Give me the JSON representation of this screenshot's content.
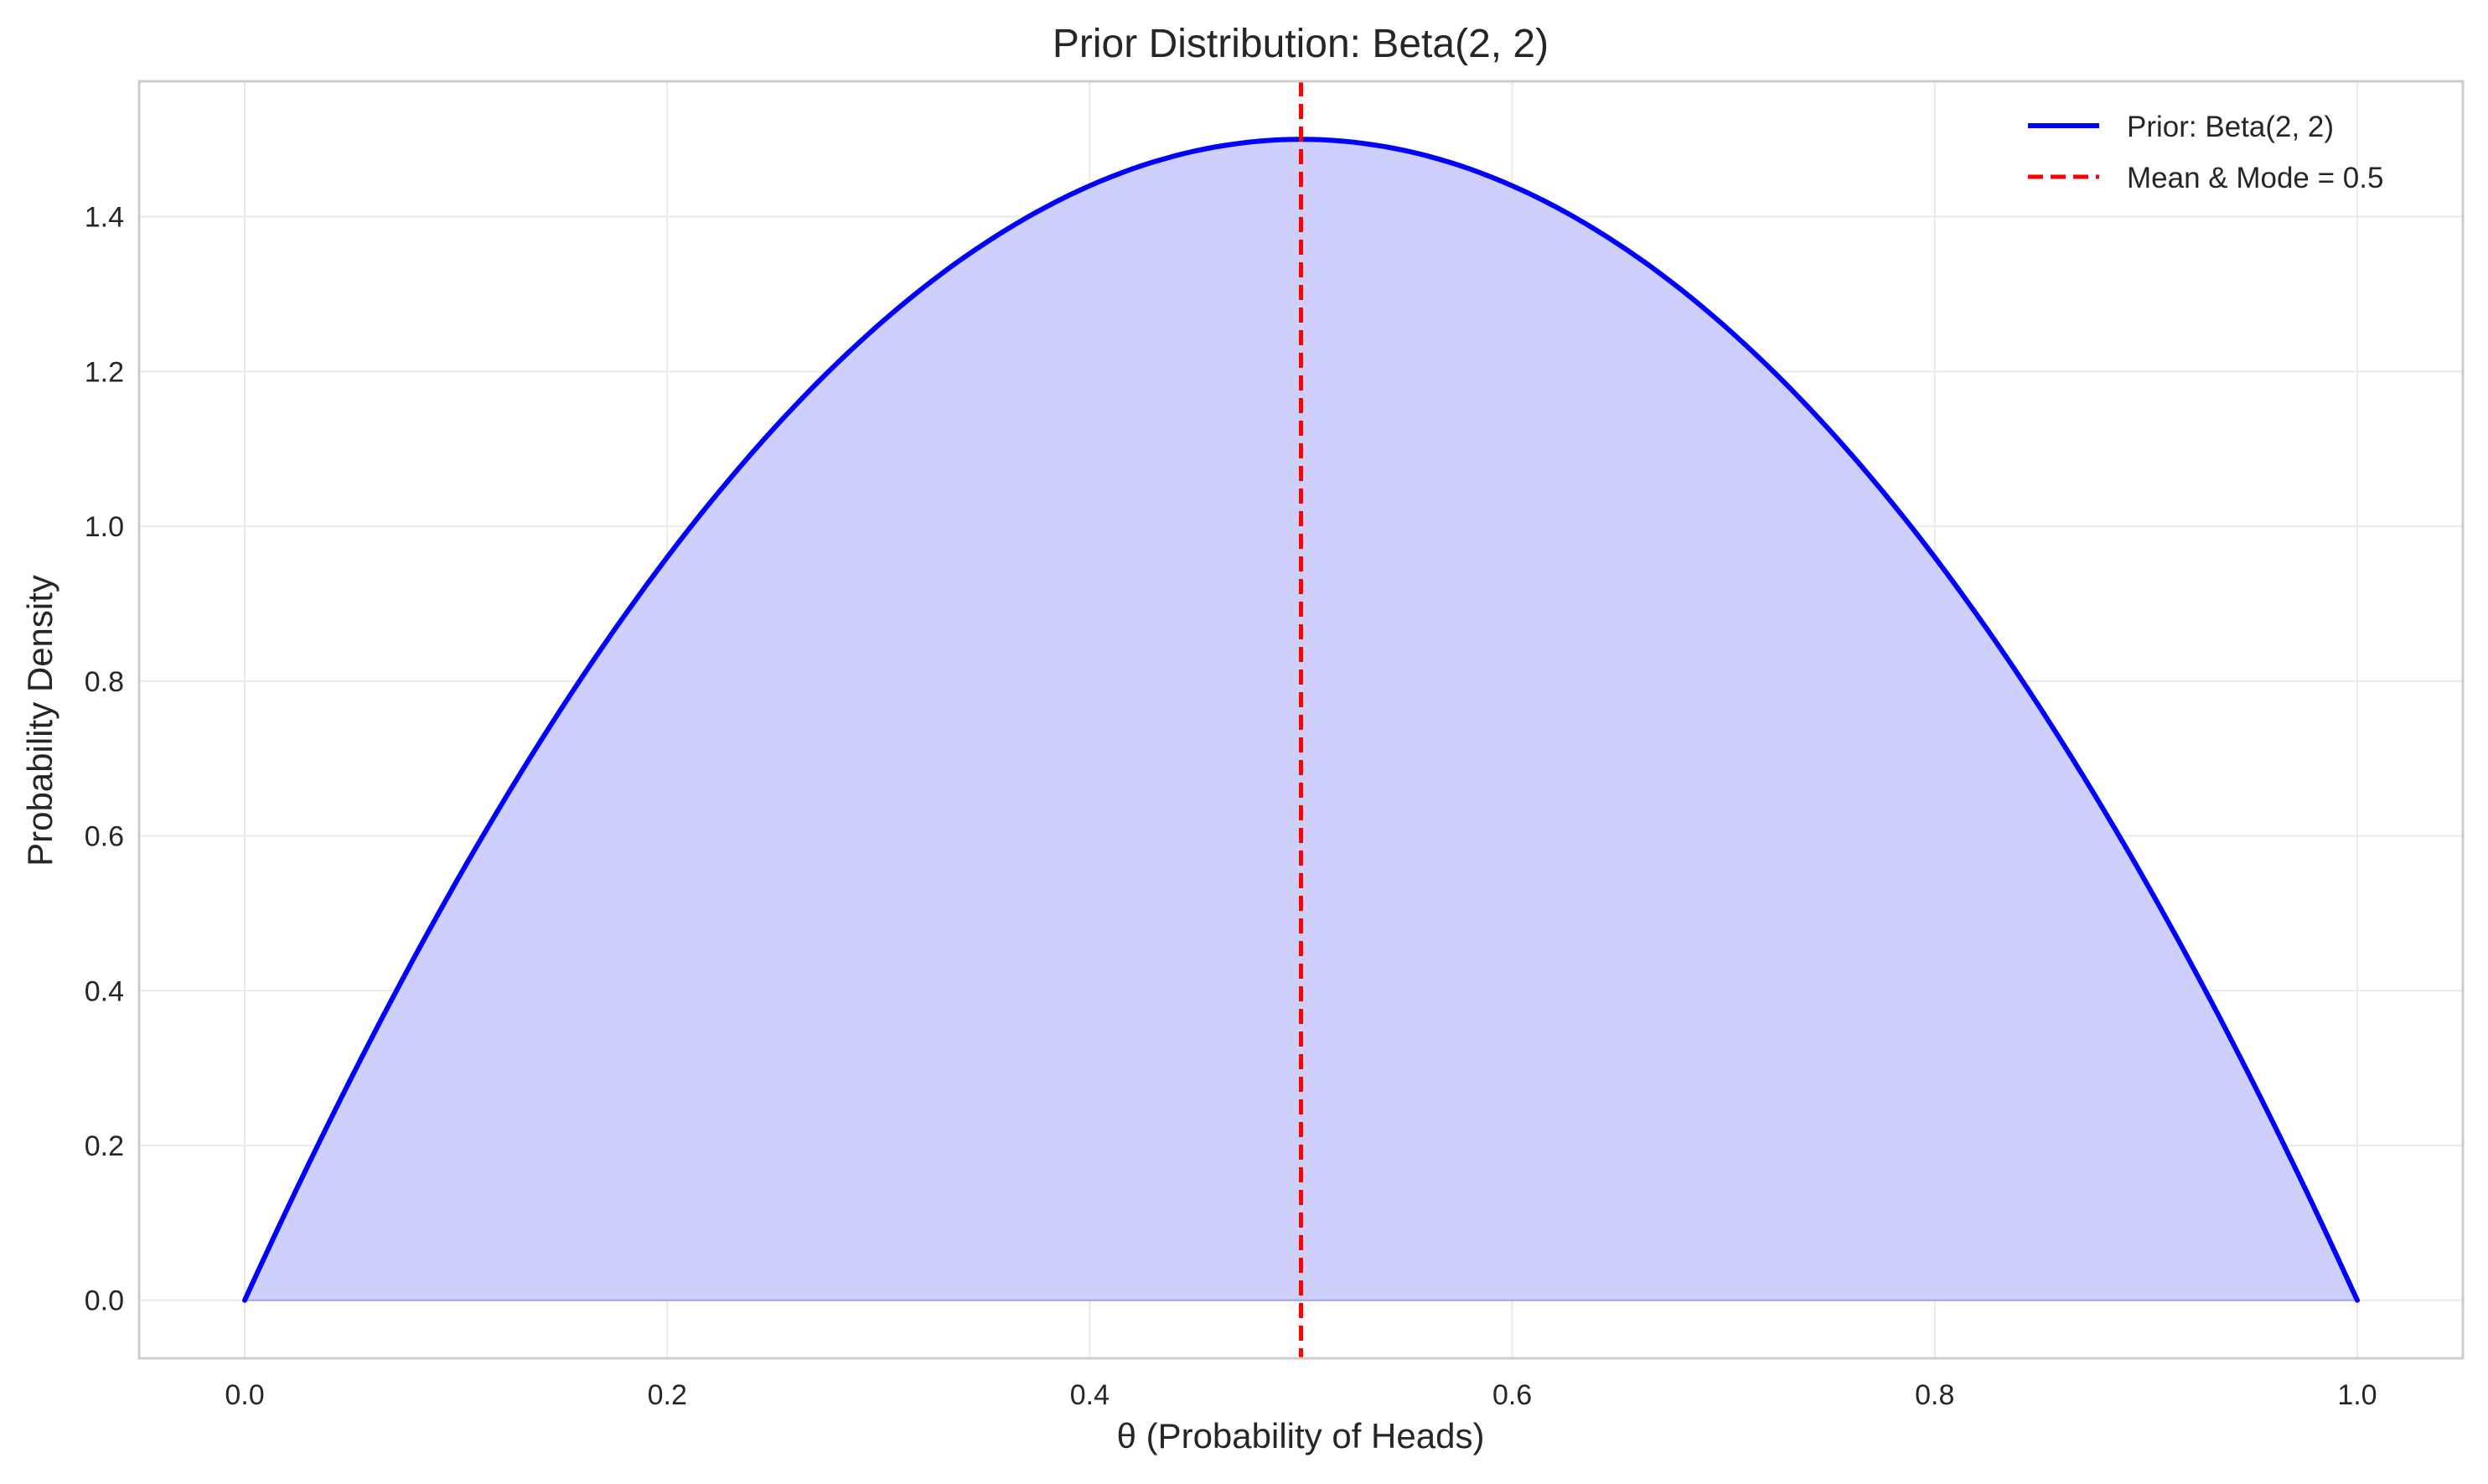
{
  "colors": {
    "curve": "#0000ff",
    "fill": "#ccccfc",
    "mean_line": "#ff0000",
    "grid": "#e9e9e9",
    "frame": "#cccccc",
    "text": "#262626"
  },
  "chart_data": {
    "type": "area",
    "title": "Prior Distribution: Beta(2, 2)",
    "xlabel": "θ (Probability of Heads)",
    "ylabel": "Probability Density",
    "xlim": [
      -0.05,
      1.05
    ],
    "ylim": [
      -0.075,
      1.575
    ],
    "grid": true,
    "legend_position": "top-right",
    "x_ticks": [
      "0.0",
      "0.2",
      "0.4",
      "0.6",
      "0.8",
      "1.0"
    ],
    "y_ticks": [
      "0.0",
      "0.2",
      "0.4",
      "0.6",
      "0.8",
      "1.0",
      "1.2",
      "1.4"
    ],
    "series": [
      {
        "name": "Prior: Beta(2, 2)",
        "style": "solid",
        "filled": true,
        "x": [
          0.0,
          0.05,
          0.1,
          0.15,
          0.2,
          0.25,
          0.3,
          0.35,
          0.4,
          0.45,
          0.5,
          0.55,
          0.6,
          0.65,
          0.7,
          0.75,
          0.8,
          0.85,
          0.9,
          0.95,
          1.0
        ],
        "y": [
          0.0,
          0.285,
          0.54,
          0.765,
          0.96,
          1.125,
          1.26,
          1.365,
          1.44,
          1.485,
          1.5,
          1.485,
          1.44,
          1.365,
          1.26,
          1.125,
          0.96,
          0.765,
          0.54,
          0.285,
          0.0
        ]
      }
    ],
    "reference_lines": [
      {
        "name": "Mean & Mode = 0.5",
        "orientation": "vertical",
        "x": 0.5,
        "style": "dashed"
      }
    ]
  }
}
